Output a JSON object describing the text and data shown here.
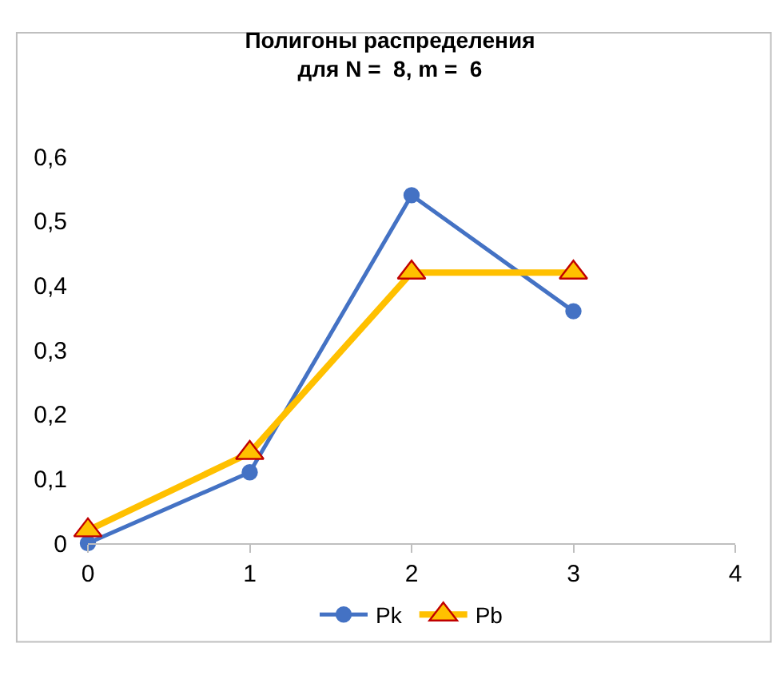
{
  "chart_data": {
    "type": "line",
    "title": "Полигоны распределения\nдля N =  8, m =  6",
    "x": [
      0,
      1,
      2,
      3
    ],
    "series": [
      {
        "name": "Pk",
        "color": "#4472c4",
        "marker": "circle",
        "values": [
          0,
          0.11,
          0.54,
          0.36
        ]
      },
      {
        "name": "Pb",
        "color": "#ffc000",
        "marker": "triangle",
        "values": [
          0.02,
          0.14,
          0.42,
          0.42
        ]
      }
    ],
    "xlim": [
      0,
      4
    ],
    "xticks": [
      0,
      1,
      2,
      3,
      4
    ],
    "ylim": [
      0,
      0.6
    ],
    "yticks": [
      0,
      {
        "value": 0.1,
        "label": "0,1"
      },
      {
        "value": 0.2,
        "label": "0,2"
      },
      {
        "value": 0.3,
        "label": "0,3"
      },
      {
        "value": 0.4,
        "label": "0,4"
      },
      {
        "value": 0.5,
        "label": "0,5"
      },
      {
        "value": 0.6,
        "label": "0,6"
      }
    ],
    "grid": false,
    "legend": "bottom",
    "line_style": "solid"
  }
}
